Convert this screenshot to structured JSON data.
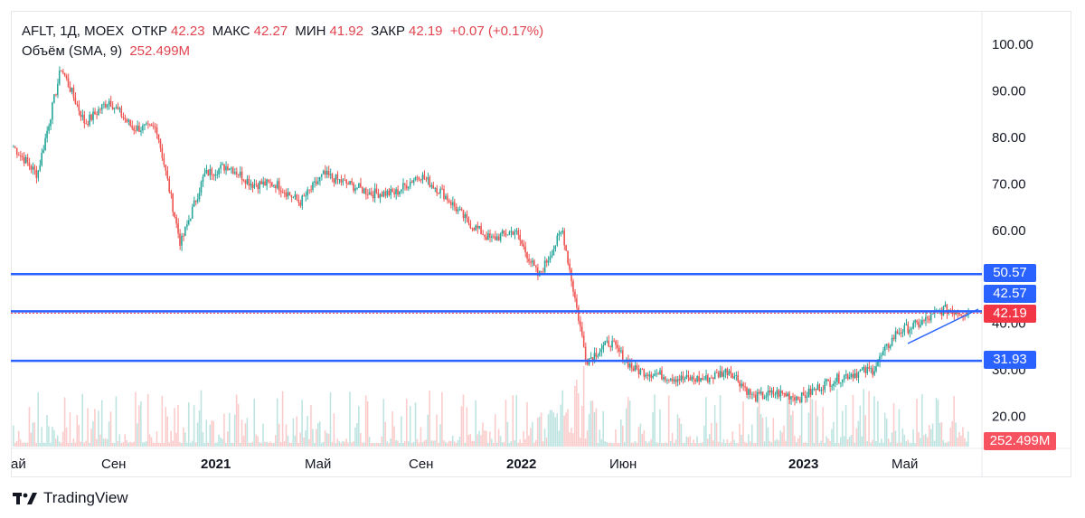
{
  "legend": {
    "symbol": "AFLT, 1Д, MOEX",
    "open_label": "ОТКР",
    "open": "42.23",
    "high_label": "МАКС",
    "high": "42.27",
    "low_label": "МИН",
    "low": "41.92",
    "close_label": "ЗАКР",
    "close": "42.19",
    "change": "+0.07 (+0.17%)",
    "volume_label": "Объём (SMA, 9)",
    "volume_value": "252.499M"
  },
  "brand": {
    "name": "TradingView"
  },
  "colors": {
    "up": "#26a69a",
    "down": "#ef5350",
    "level": "#2962ff",
    "price_badge": "#f23645",
    "volume_badge": "#f7525f"
  },
  "chart_data": {
    "type": "candlestick",
    "x_tick_labels": [
      "ай",
      "Сен",
      "2021",
      "Май",
      "Сен",
      "2022",
      "Июн",
      "2023",
      "Май"
    ],
    "y_ticks": [
      "100.00",
      "90.00",
      "80.00",
      "70.00",
      "60.00",
      "50.00",
      "40.00",
      "30.00",
      "20.00"
    ],
    "ylim": [
      15,
      103
    ],
    "levels": [
      {
        "label": "50.57",
        "value": 50.57
      },
      {
        "label": "42.57",
        "value": 42.57
      },
      {
        "label": "31.93",
        "value": 31.93
      }
    ],
    "last_price": {
      "label": "42.19",
      "value": 42.19
    },
    "volume_label": "252.499M",
    "approx_close_path": [
      [
        "2020-05",
        78
      ],
      [
        "2020-06",
        72
      ],
      [
        "2020-07",
        95
      ],
      [
        "2020-07",
        83
      ],
      [
        "2020-08",
        88
      ],
      [
        "2020-09",
        82
      ],
      [
        "2020-10",
        82
      ],
      [
        "2020-11",
        57
      ],
      [
        "2020-12",
        72
      ],
      [
        "2021-01",
        74
      ],
      [
        "2021-02",
        70
      ],
      [
        "2021-03",
        70
      ],
      [
        "2021-04",
        66
      ],
      [
        "2021-05",
        72
      ],
      [
        "2021-06",
        70
      ],
      [
        "2021-07",
        68
      ],
      [
        "2021-08",
        68
      ],
      [
        "2021-09",
        72
      ],
      [
        "2021-10",
        68
      ],
      [
        "2021-11",
        62
      ],
      [
        "2021-12",
        58
      ],
      [
        "2022-01",
        60
      ],
      [
        "2022-02",
        50
      ],
      [
        "2022-03",
        60
      ],
      [
        "2022-03",
        32
      ],
      [
        "2022-04",
        36
      ],
      [
        "2022-05",
        30
      ],
      [
        "2022-06",
        29
      ],
      [
        "2022-07",
        28
      ],
      [
        "2022-08",
        28
      ],
      [
        "2022-09",
        30
      ],
      [
        "2022-10",
        24
      ],
      [
        "2022-11",
        25
      ],
      [
        "2022-12",
        24
      ],
      [
        "2023-01",
        27
      ],
      [
        "2023-02",
        29
      ],
      [
        "2023-03",
        30
      ],
      [
        "2023-04",
        38
      ],
      [
        "2023-05",
        40
      ],
      [
        "2023-06",
        43
      ],
      [
        "2023-07",
        42.19
      ]
    ]
  }
}
